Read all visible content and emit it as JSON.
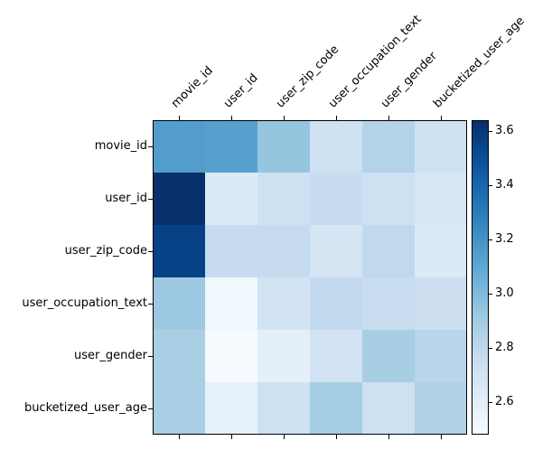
{
  "figure": {
    "background": "#ffffff",
    "axis_color": "#000000",
    "label_color": "#000000"
  },
  "chart_data": {
    "type": "heatmap",
    "title": "",
    "rows": [
      "movie_id",
      "user_id",
      "user_zip_code",
      "user_occupation_text",
      "user_gender",
      "bucketized_user_age"
    ],
    "columns": [
      "movie_id",
      "user_id",
      "user_zip_code",
      "user_occupation_text",
      "user_gender",
      "bucketized_user_age"
    ],
    "values": [
      [
        3.15,
        3.13,
        2.94,
        2.72,
        2.84,
        2.72
      ],
      [
        3.64,
        2.64,
        2.72,
        2.76,
        2.72,
        2.67
      ],
      [
        3.56,
        2.77,
        2.77,
        2.68,
        2.79,
        2.64
      ],
      [
        2.92,
        2.52,
        2.7,
        2.78,
        2.75,
        2.73
      ],
      [
        2.87,
        2.49,
        2.59,
        2.7,
        2.88,
        2.82
      ],
      [
        2.87,
        2.57,
        2.72,
        2.89,
        2.72,
        2.85
      ]
    ],
    "vmin": 2.48,
    "vmax": 3.64,
    "colormap": "Blues",
    "colormap_stops": [
      "#f7fbff",
      "#deebf7",
      "#c6dbef",
      "#9ecae1",
      "#6baed6",
      "#4292c6",
      "#2171b5",
      "#08519c",
      "#08306b"
    ],
    "legend_position": "right",
    "grid": false,
    "colorbar": {
      "tick_labels": [
        "2.6",
        "2.8",
        "3.0",
        "3.2",
        "3.4",
        "3.6"
      ],
      "tick_values": [
        2.6,
        2.8,
        3.0,
        3.2,
        3.4,
        3.6
      ]
    }
  }
}
